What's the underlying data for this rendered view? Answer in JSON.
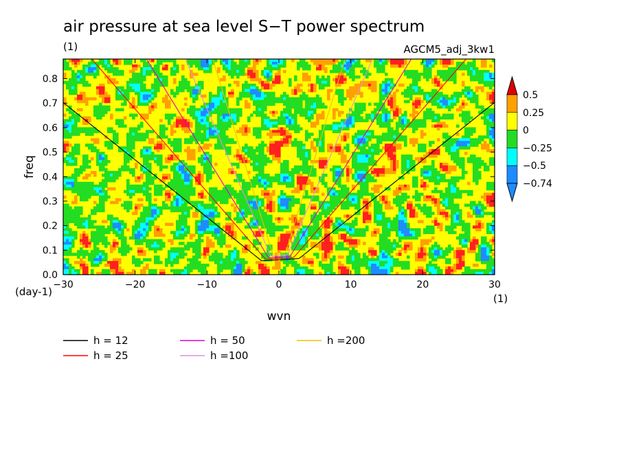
{
  "chart_data": {
    "type": "heatmap",
    "title": "air pressure at sea level S−T power spectrum",
    "subtitle_left": "(1)",
    "subtitle_right": "AGCM5_adj_3kw1",
    "xlabel": "wvn",
    "ylabel": "freq",
    "x_unit": "(1)",
    "y_unit": "(day-1)",
    "xlim": [
      -30,
      30
    ],
    "ylim": [
      0,
      0.88
    ],
    "x_ticks": [
      -30,
      -20,
      -10,
      0,
      10,
      20,
      30
    ],
    "x_tick_labels": [
      "−30",
      "−20",
      "−10",
      "0",
      "10",
      "20",
      "30"
    ],
    "y_ticks": [
      0,
      0.1,
      0.2,
      0.3,
      0.4,
      0.5,
      0.6,
      0.7,
      0.8
    ],
    "y_tick_labels": [
      "0.0",
      "0.1",
      "0.2",
      "0.3",
      "0.4",
      "0.5",
      "0.6",
      "0.7",
      "0.8"
    ],
    "colorbar": {
      "levels": [
        -0.74,
        -0.5,
        -0.25,
        0,
        0.25,
        0.5
      ],
      "labels": [
        "−0.74",
        "−0.5",
        "−0.25",
        "0",
        "0.25",
        "0.5"
      ],
      "colors": [
        "#1e8cff",
        "#00ffff",
        "#22dd22",
        "#ffff00",
        "#ffa000",
        "#ff2020",
        "#e00000"
      ]
    },
    "series": [
      {
        "name": "h = 12",
        "h": 12,
        "color": "#000000"
      },
      {
        "name": "h = 25",
        "h": 25,
        "color": "#ff0000"
      },
      {
        "name": "h = 50",
        "h": 50,
        "color": "#e000c0"
      },
      {
        "name": "h =100",
        "h": 100,
        "color": "#e090e0"
      },
      {
        "name": "h =200",
        "h": 200,
        "color": "#f0c000"
      }
    ],
    "grid": false,
    "legend_position": "bottom-left"
  }
}
